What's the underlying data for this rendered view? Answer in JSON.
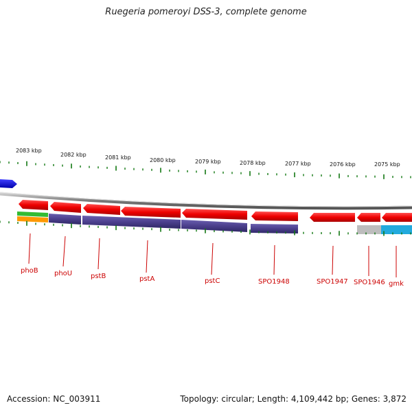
{
  "title": "Ruegeria pomeroyi DSS-3, complete genome",
  "footer": {
    "accession": "Accession: NC_003911",
    "topology": "Topology: circular; Length: 4,109,442 bp; Genes: 3,872"
  },
  "ruler": {
    "labels": [
      "2083 kbp",
      "2082 kbp",
      "2081 kbp",
      "2080 kbp",
      "2079 kbp",
      "2078 kbp",
      "2077 kbp",
      "2076 kbp",
      "2075 kbp"
    ]
  },
  "genes": [
    "phoB",
    "phoU",
    "pstB",
    "pstA",
    "pstC",
    "SPO1948",
    "SPO1947",
    "SPO1946",
    "gmk"
  ],
  "colors": {
    "gene": "#ff0000",
    "feature_purple": "#4b3f8c",
    "feature_green": "#33bb33",
    "feature_orange": "#ff9900",
    "feature_grey": "#bbbbbb",
    "feature_cyan": "#22aadd",
    "blue_arrow": "#0000ee",
    "tick": "#117711",
    "label": "#cc0000"
  }
}
